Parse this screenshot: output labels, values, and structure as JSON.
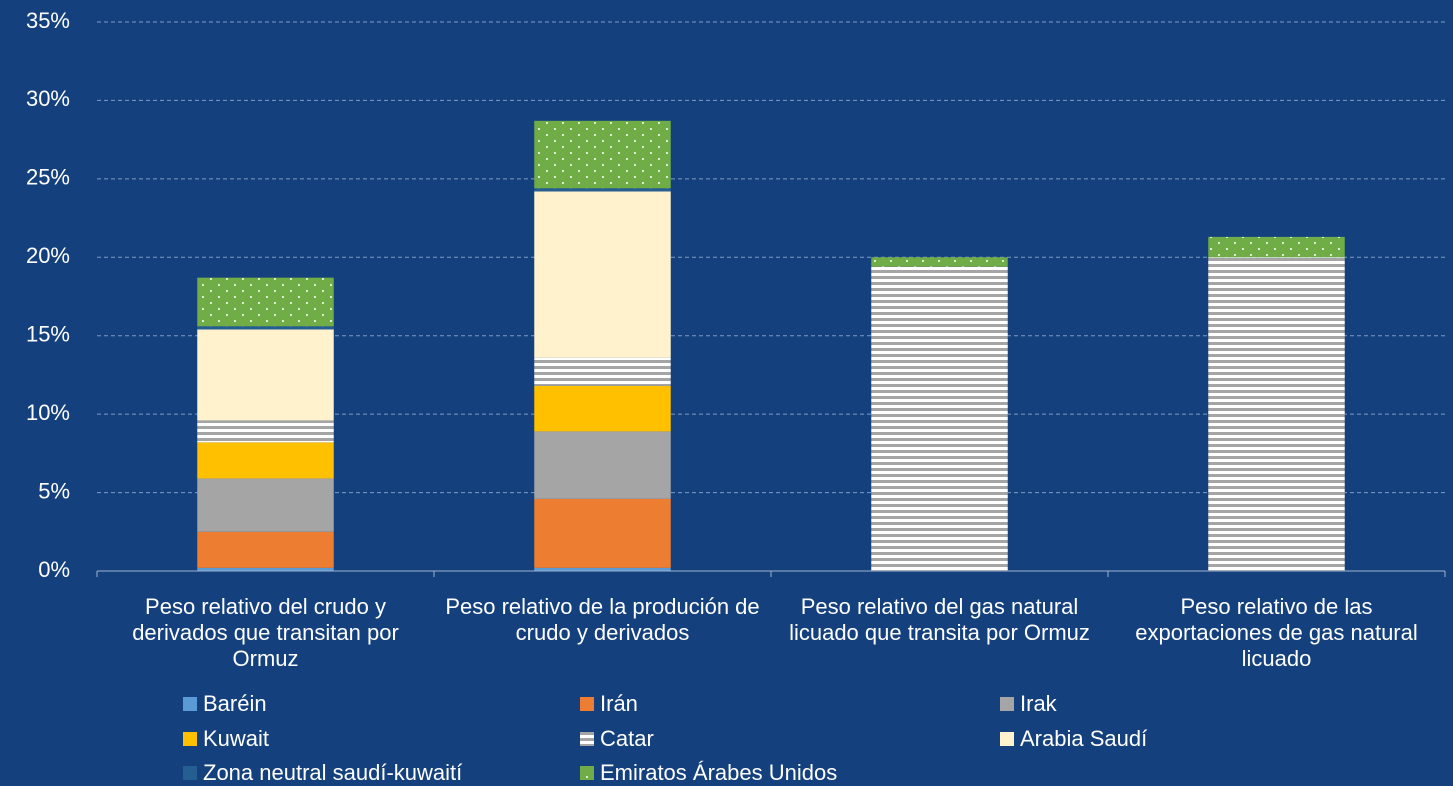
{
  "chart_data": {
    "type": "stacked_bar",
    "categories": [
      "Peso relativo del crudo y derivados que transitan por Ormuz",
      "Peso relativo de la produción de crudo y derivados",
      "Peso relativo del gas natural licuado que transita por Ormuz",
      "Peso relativo de las exportaciones de gas natural licuado"
    ],
    "series": [
      {
        "name": "Baréin",
        "color": "#5b9bd5",
        "values": [
          0.2,
          0.2,
          0,
          0
        ]
      },
      {
        "name": "Irán",
        "color": "#ed7d31",
        "values": [
          2.3,
          4.4,
          0,
          0
        ]
      },
      {
        "name": "Irak",
        "color": "#a5a5a5",
        "values": [
          3.4,
          4.3,
          0,
          0
        ]
      },
      {
        "name": "Kuwait",
        "color": "#ffc000",
        "values": [
          2.3,
          2.9,
          0,
          0
        ]
      },
      {
        "name": "Catar",
        "color": "#a5a5a5",
        "pattern": "stripes",
        "values": [
          1.4,
          1.8,
          19.4,
          20.0
        ]
      },
      {
        "name": "Arabia Saudí",
        "color": "#fff2cc",
        "values": [
          5.8,
          10.6,
          0,
          0
        ]
      },
      {
        "name": "Zona neutral saudí-kuwaití",
        "color": "#255e91",
        "values": [
          0.2,
          0.2,
          0,
          0
        ]
      },
      {
        "name": "Emiratos Árabes Unidos",
        "color": "#70ad47",
        "pattern": "dots",
        "values": [
          3.1,
          4.3,
          0.6,
          1.3
        ]
      }
    ],
    "ylim": [
      0,
      35
    ],
    "yticks": [
      {
        "value": 0,
        "label": "0%"
      },
      {
        "value": 5,
        "label": "5%"
      },
      {
        "value": 10,
        "label": "10%"
      },
      {
        "value": 15,
        "label": "15%"
      },
      {
        "value": 20,
        "label": "20%"
      },
      {
        "value": 25,
        "label": "25%"
      },
      {
        "value": 30,
        "label": "30%"
      },
      {
        "value": 35,
        "label": "35%"
      }
    ],
    "grid": true,
    "legend": "bottom"
  }
}
